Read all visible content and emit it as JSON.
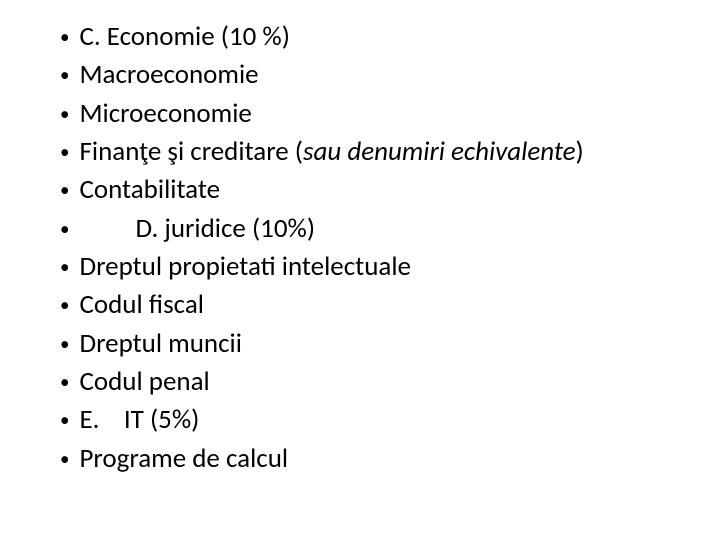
{
  "bullets": {
    "b0": {
      "text": "C. Economie (10 %)"
    },
    "b1": {
      "text": "Macroeconomie"
    },
    "b2": {
      "text": "Microeconomie"
    },
    "b3": {
      "prefix": "Finanţe şi creditare (",
      "italic": "sau denumiri echivalente",
      "suffix": ")"
    },
    "b4": {
      "text": "Contabilitate"
    },
    "b5": {
      "text": "D. juridice (10%)"
    },
    "b6": {
      "text": "Dreptul propietati intelectuale"
    },
    "b7": {
      "text": "Codul fiscal"
    },
    "b8": {
      "text": "Dreptul muncii"
    },
    "b9": {
      "text": "Codul penal"
    },
    "b10": {
      "text": "E.    IT (5%)"
    },
    "b11": {
      "text": "Programe de calcul"
    }
  },
  "style": {
    "font_family": "Calibri",
    "font_size_pt": 20,
    "text_color": "#000000",
    "background_color": "#ffffff",
    "bullet_char": "•"
  }
}
